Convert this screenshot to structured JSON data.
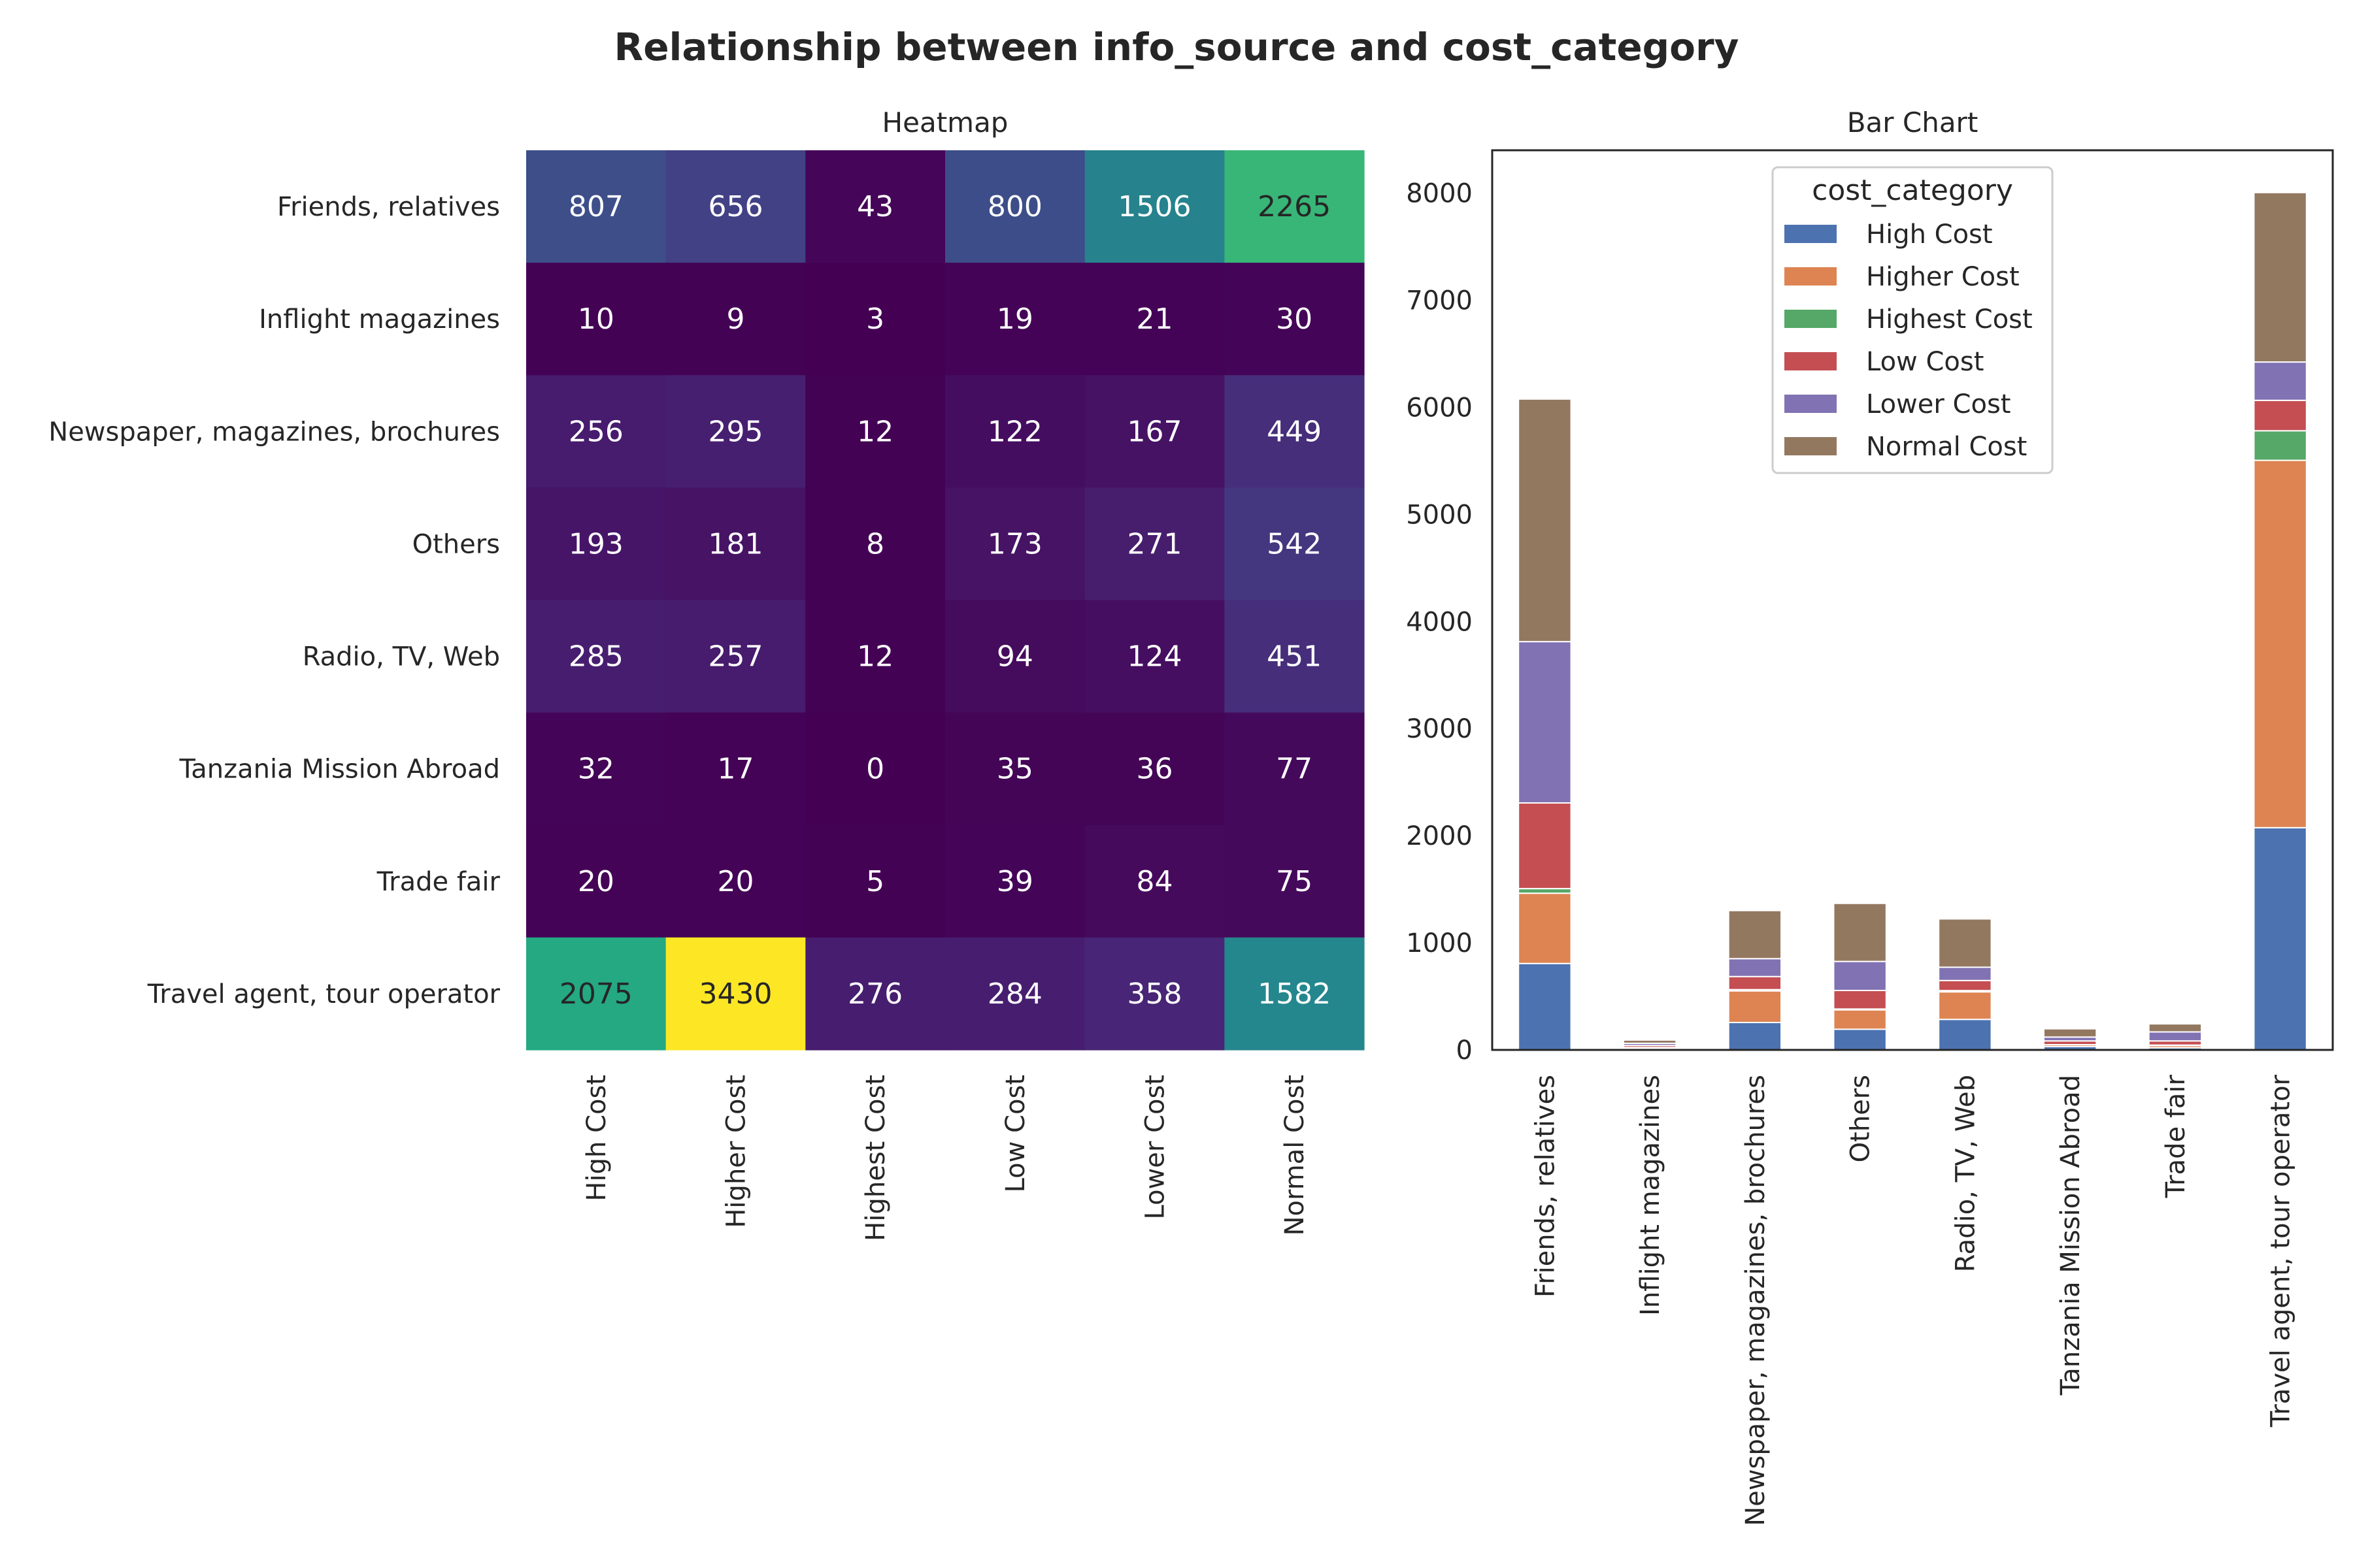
{
  "figure": {
    "title": "Relationship between info_source and cost_category"
  },
  "chart_data": [
    {
      "type": "heatmap",
      "title": "Heatmap",
      "rows": [
        "Friends, relatives",
        "Inflight magazines",
        "Newspaper, magazines, brochures",
        "Others",
        "Radio, TV, Web",
        "Tanzania Mission Abroad",
        "Trade fair",
        "Travel agent, tour operator"
      ],
      "columns": [
        "High Cost",
        "Higher Cost",
        "Highest Cost",
        "Low Cost",
        "Lower Cost",
        "Normal Cost"
      ],
      "values": [
        [
          807,
          656,
          43,
          800,
          1506,
          2265
        ],
        [
          10,
          9,
          3,
          19,
          21,
          30
        ],
        [
          256,
          295,
          12,
          122,
          167,
          449
        ],
        [
          193,
          181,
          8,
          173,
          271,
          542
        ],
        [
          285,
          257,
          12,
          94,
          124,
          451
        ],
        [
          32,
          17,
          0,
          35,
          36,
          77
        ],
        [
          20,
          20,
          5,
          39,
          84,
          75
        ],
        [
          2075,
          3430,
          276,
          284,
          358,
          1582
        ]
      ],
      "colormap": "viridis",
      "vmin": 0,
      "vmax": 3430
    },
    {
      "type": "bar",
      "stacked": true,
      "title": "Bar Chart",
      "categories": [
        "Friends, relatives",
        "Inflight magazines",
        "Newspaper, magazines, brochures",
        "Others",
        "Radio, TV, Web",
        "Tanzania Mission Abroad",
        "Trade fair",
        "Travel agent, tour operator"
      ],
      "legend_title": "cost_category",
      "legend_position": "top-center",
      "ylim": [
        0,
        8400
      ],
      "yticks": [
        0,
        1000,
        2000,
        3000,
        4000,
        5000,
        6000,
        7000,
        8000
      ],
      "series": [
        {
          "name": "High Cost",
          "color": "#4c72b0",
          "values": [
            807,
            10,
            256,
            193,
            285,
            32,
            20,
            2075
          ]
        },
        {
          "name": "Higher Cost",
          "color": "#dd8452",
          "values": [
            656,
            9,
            295,
            181,
            257,
            17,
            20,
            3430
          ]
        },
        {
          "name": "Highest Cost",
          "color": "#55a868",
          "values": [
            43,
            3,
            12,
            8,
            12,
            0,
            5,
            276
          ]
        },
        {
          "name": "Low Cost",
          "color": "#c44e52",
          "values": [
            800,
            19,
            122,
            173,
            94,
            35,
            39,
            284
          ]
        },
        {
          "name": "Lower Cost",
          "color": "#8172b3",
          "values": [
            1506,
            21,
            167,
            271,
            124,
            36,
            84,
            358
          ]
        },
        {
          "name": "Normal Cost",
          "color": "#937860",
          "values": [
            2265,
            30,
            449,
            542,
            451,
            77,
            75,
            1582
          ]
        }
      ]
    }
  ]
}
